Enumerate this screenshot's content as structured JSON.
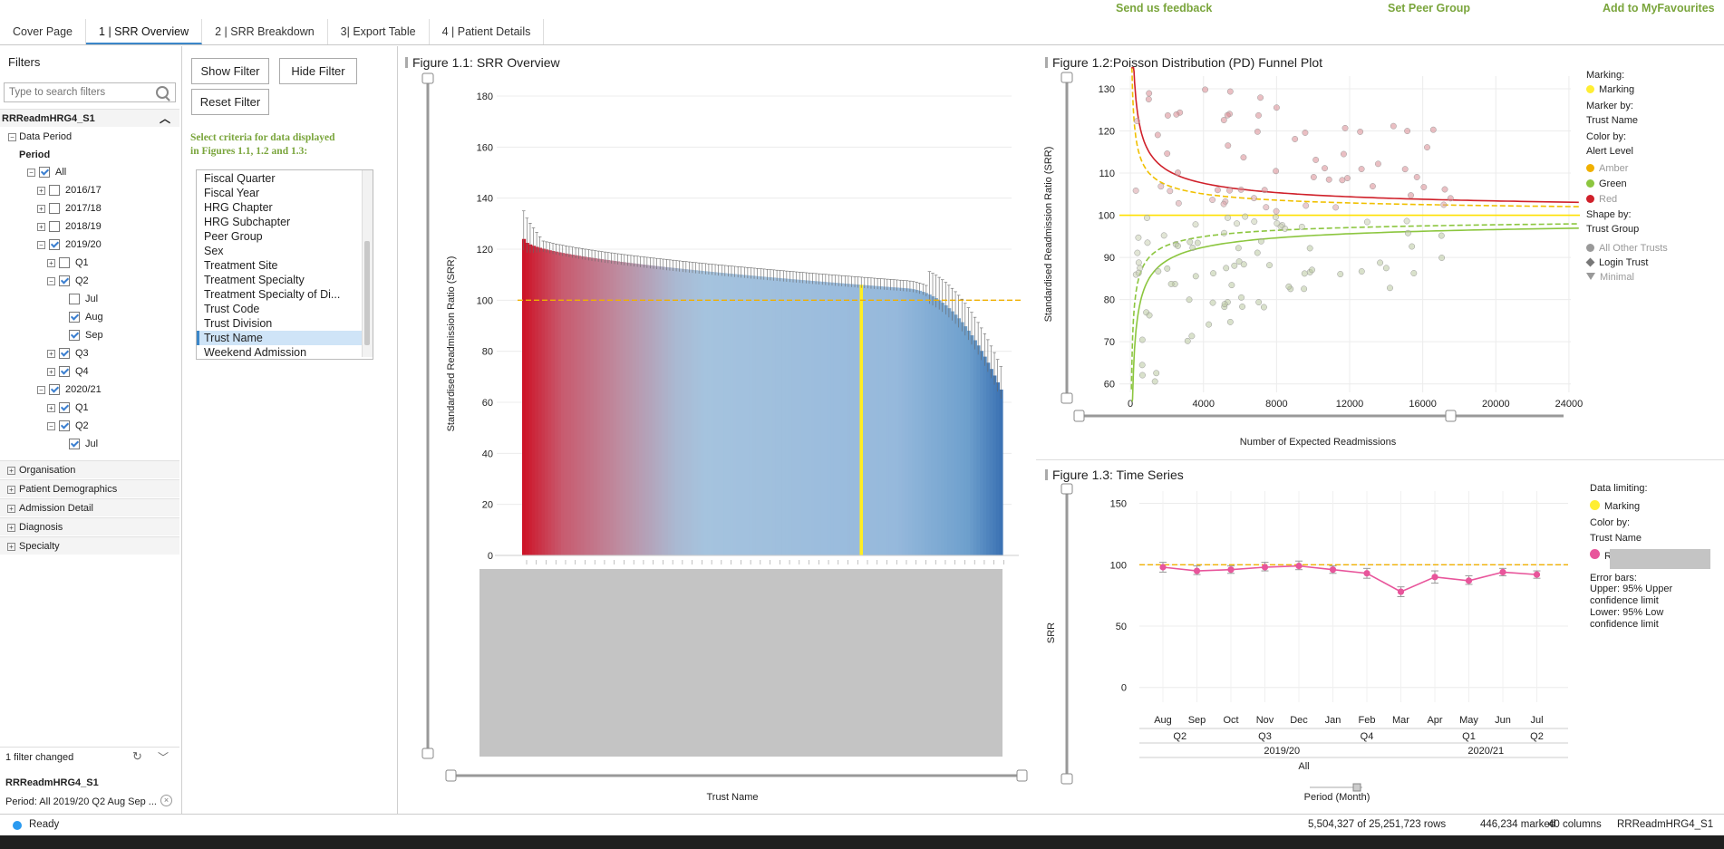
{
  "tabs": [
    {
      "label": "Cover Page"
    },
    {
      "label": "1 | SRR Overview"
    },
    {
      "label": "2 | SRR Breakdown"
    },
    {
      "label": "3| Export Table"
    },
    {
      "label": "4 | Patient Details"
    }
  ],
  "top_links": {
    "feedback": "Send us feedback",
    "peer": "Set Peer Group",
    "favourites": "Add to MyFavourites"
  },
  "filters": {
    "title": "Filters",
    "search_placeholder": "Type to search filters",
    "table_name": "RRReadmHRG4_S1",
    "data_period": "Data Period",
    "period": "Period",
    "tree": [
      {
        "label": "All",
        "checked": true
      },
      {
        "label": "2016/17",
        "checked": false
      },
      {
        "label": "2017/18",
        "checked": false
      },
      {
        "label": "2018/19",
        "checked": false
      },
      {
        "label": "2019/20",
        "checked": true
      },
      {
        "label": "Q1",
        "checked": false
      },
      {
        "label": "Q2",
        "checked": true
      },
      {
        "label": "Jul",
        "checked": false
      },
      {
        "label": "Aug",
        "checked": true
      },
      {
        "label": "Sep",
        "checked": true
      },
      {
        "label": "Q3",
        "checked": true
      },
      {
        "label": "Q4",
        "checked": true
      },
      {
        "label": "2020/21",
        "checked": true
      },
      {
        "label": "Q1",
        "checked": true
      },
      {
        "label": "Q2",
        "checked": true
      },
      {
        "label": "Jul",
        "checked": true
      }
    ],
    "groups": [
      "Organisation",
      "Patient Demographics",
      "Admission Detail",
      "Diagnosis",
      "Specialty"
    ],
    "changed": "1 filter changed",
    "footer_table": "RRReadmHRG4_S1",
    "footer_period": "Period: All 2019/20 Q2 Aug Sep ..."
  },
  "filter_controls": {
    "show": "Show Filter",
    "hide": "Hide Filter",
    "reset": "Reset Filter",
    "instruction_line1": "Select criteria for data displayed",
    "instruction_line2": "in Figures 1.1, 1.2 and 1.3:",
    "list": [
      "Fiscal Quarter",
      "Fiscal Year",
      "HRG Chapter",
      "HRG Subchapter",
      "Peer Group",
      "Sex",
      "Treatment Site",
      "Treatment Specialty",
      "Treatment Specialty of Di...",
      "Trust Code",
      "Trust Division",
      "Trust Name",
      "Weekend Admission"
    ],
    "selected": "Trust Name"
  },
  "fig11": {
    "title": "Figure 1.1: SRR Overview",
    "chart_data": {
      "type": "bar",
      "ylabel": "Standardised Readmission Ratio (SRR)",
      "xlabel": "Trust Name",
      "ylim": [
        0,
        180
      ],
      "yticks": [
        0,
        20,
        40,
        60,
        80,
        100,
        120,
        140,
        160,
        180
      ],
      "reference_line": 100,
      "n_bars": 148,
      "srr_start": 124,
      "srr_end": 61,
      "highlighted_bar_index": 104
    }
  },
  "fig12": {
    "title": "Figure 1.2:Poisson Distribution (PD) Funnel Plot",
    "chart_data": {
      "type": "scatter",
      "ylabel": "Standardised Readmission Ratio (SRR)",
      "xlabel": "Number of Expected Readmissions",
      "xlim": [
        -600,
        24600
      ],
      "ylim": [
        58,
        133
      ],
      "xticks": [
        0,
        4000,
        8000,
        12000,
        16000,
        20000,
        24000
      ],
      "yticks": [
        60,
        70,
        80,
        90,
        100,
        110,
        120,
        130
      ],
      "reference_line": 100
    },
    "legend": {
      "marking_title": "Marking:",
      "marking_item": "Marking",
      "marker_title": "Marker by:",
      "marker_value": "Trust Name",
      "color_title": "Color by:",
      "color_value": "Alert Level",
      "colors": [
        {
          "label": "Amber",
          "color": "#f0b000"
        },
        {
          "label": "Green",
          "color": "#8cc63f"
        },
        {
          "label": "Red",
          "color": "#d0202a"
        }
      ],
      "shape_title": "Shape by:",
      "shape_value": "Trust Group",
      "shapes": [
        "All Other Trusts",
        "Login Trust",
        "Minimal"
      ]
    }
  },
  "fig13": {
    "title": "Figure 1.3: Time Series",
    "chart_data": {
      "type": "line",
      "ylabel": "SRR",
      "xlabel": "Period (Month)",
      "ylim": [
        -12,
        160
      ],
      "yticks": [
        0,
        50,
        100,
        150
      ],
      "reference_line": 100,
      "months": [
        "Aug",
        "Sep",
        "Oct",
        "Nov",
        "Dec",
        "Jan",
        "Feb",
        "Mar",
        "Apr",
        "May",
        "Jun",
        "Jul"
      ],
      "quarters": [
        {
          "label": "Q2",
          "at": 0.5
        },
        {
          "label": "Q3",
          "at": 3
        },
        {
          "label": "Q4",
          "at": 6
        },
        {
          "label": "Q1",
          "at": 9
        },
        {
          "label": "Q2",
          "at": 11
        }
      ],
      "years": [
        {
          "label": "2019/20",
          "at": 3.5
        },
        {
          "label": "2020/21",
          "at": 9.5
        }
      ],
      "all_label": "All",
      "values": [
        98,
        95,
        96,
        98,
        99,
        96,
        93,
        78,
        90,
        87,
        94,
        92
      ],
      "upper": [
        102,
        99,
        99,
        102,
        103,
        99,
        97,
        82,
        95,
        91,
        97,
        95
      ],
      "lower": [
        94,
        92,
        93,
        95,
        96,
        93,
        89,
        74,
        85,
        84,
        91,
        89
      ]
    },
    "legend": {
      "limit_title": "Data limiting:",
      "marking_item": "Marking",
      "color_title": "Color by:",
      "color_value": "Trust Name",
      "trust_item": "R",
      "err_title": "Error bars:",
      "err_upper": "Upper: 95% Upper confidence limit",
      "err_lower": "Lower: 95% Low confidence limit"
    }
  },
  "status": {
    "ready": "Ready",
    "rows": "5,504,327 of 25,251,723 rows",
    "marked": "446,234 marked",
    "columns": "40 columns",
    "table": "RRReadmHRG4_S1"
  }
}
